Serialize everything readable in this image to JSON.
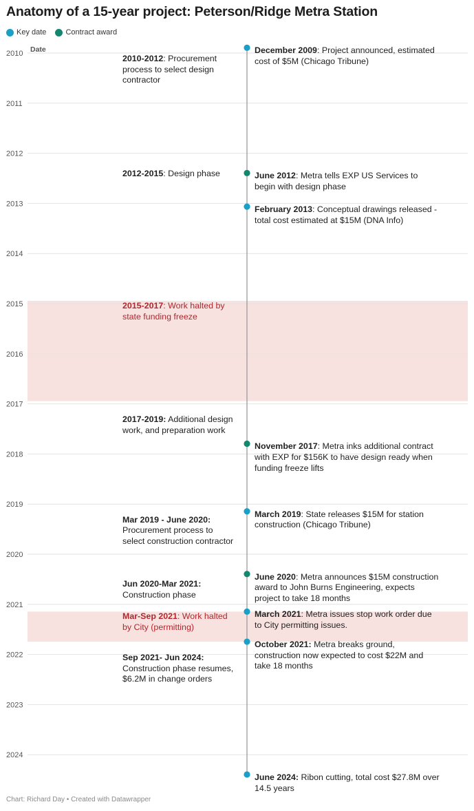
{
  "title": "Anatomy of a 15-year project: Peterson/Ridge Metra Station",
  "legend": [
    {
      "label": "Key date",
      "color": "#1b9fc6"
    },
    {
      "label": "Contract award",
      "color": "#14876f"
    }
  ],
  "footer": "Chart: Richard Day • Created with Datawrapper",
  "colors": {
    "key_date": "#1b9fc6",
    "contract_award": "#14876f",
    "halt_band": "#f8e2e0",
    "halt_text": "#b0272d",
    "axis_line": "#9a9a9a"
  },
  "chart_data": {
    "type": "scatter",
    "title": "Anatomy of a 15-year project: Peterson/Ridge Metra Station",
    "ylabel": "Date",
    "ylim": [
      2010,
      2024.45
    ],
    "y_ticks": [
      "2010",
      "2011",
      "2012",
      "2013",
      "2014",
      "2015",
      "2016",
      "2017",
      "2018",
      "2019",
      "2020",
      "2021",
      "2022",
      "2023",
      "2024"
    ],
    "grid": true,
    "legend_position": "top-left",
    "shaded_ranges": [
      {
        "from": 2015.0,
        "to": 2017.0,
        "label_bold": "2015-2017",
        "label_text": ": Work halted by state funding freeze"
      },
      {
        "from": 2021.2,
        "to": 2021.8,
        "label_bold": "Mar-Sep 2021",
        "label_text": ": Work halted by City (permitting)"
      }
    ],
    "events": [
      {
        "y": 2009.95,
        "type": "Key date",
        "bold": "December 2009",
        "text": ": Project announced, estimated cost of $5M (Chicago Tribune)"
      },
      {
        "y": 2012.45,
        "type": "Contract award",
        "bold": "June 2012",
        "text": ": Metra tells EXP US Services to begin with design phase"
      },
      {
        "y": 2013.12,
        "type": "Key date",
        "bold": "February 2013",
        "text": ": Conceptual drawings released - total cost estimated at $15M (DNA Info)"
      },
      {
        "y": 2017.85,
        "type": "Contract award",
        "bold": "November 2017",
        "text": ": Metra inks additional contract with EXP for $156K to have design ready when funding freeze lifts"
      },
      {
        "y": 2019.2,
        "type": "Key date",
        "bold": "March 2019",
        "text": ": State releases $15M for station construction (Chicago Tribune)"
      },
      {
        "y": 2020.45,
        "type": "Contract award",
        "bold": "June 2020",
        "text": ": Metra announces $15M construction award to John Burns Engineering, expects project to take 18 months"
      },
      {
        "y": 2021.2,
        "type": "Key date",
        "bold": "March 2021",
        "text": ": Metra issues stop work order due to City permitting issues."
      },
      {
        "y": 2021.8,
        "type": "Key date",
        "bold": "October 2021:",
        "text": " Metra breaks ground, construction now expected to cost $22M and take 18 months"
      },
      {
        "y": 2024.45,
        "type": "Key date",
        "bold": "June 2024:",
        "text": " Ribon cutting, total cost $27.8M over 14.5 years"
      }
    ],
    "phases": [
      {
        "y": 2010.0,
        "bold": "2010-2012",
        "text": ": Procurement process to select design contractor"
      },
      {
        "y": 2012.3,
        "bold": "2012-2015",
        "text": ": Design phase"
      },
      {
        "y": 2017.2,
        "bold": "2017-2019:",
        "text": " Additional design work, and preparation work"
      },
      {
        "y": 2019.2,
        "bold": "Mar 2019 - June 2020:",
        "text": " Procurement process to select construction contractor"
      },
      {
        "y": 2020.48,
        "bold": "Jun 2020-Mar 2021:",
        "text": " Construction phase"
      },
      {
        "y": 2021.95,
        "bold": "Sep 2021- Jun 2024:",
        "text": " Construction phase resumes, $6.2M in change orders"
      }
    ]
  }
}
